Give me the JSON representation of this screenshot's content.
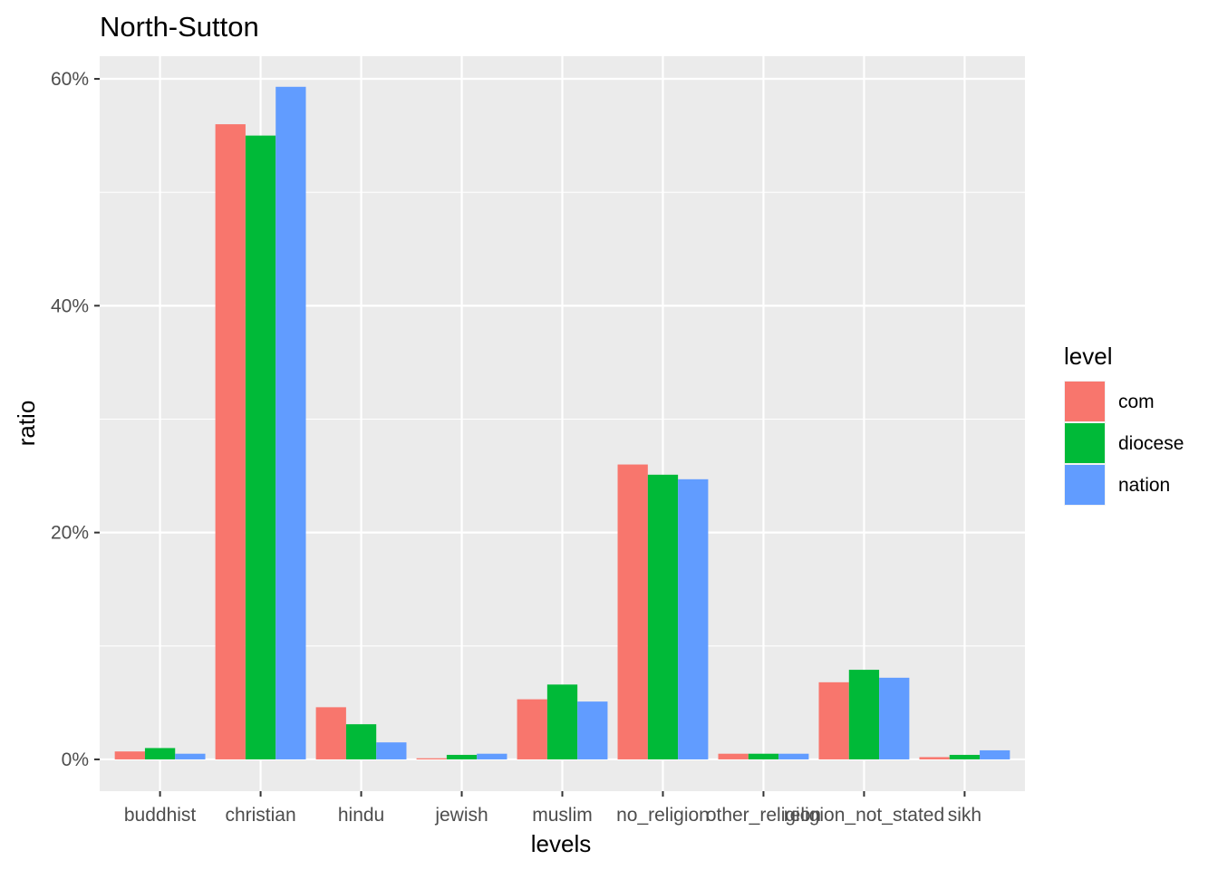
{
  "chart_data": {
    "type": "bar",
    "title": "North-Sutton",
    "xlabel": "levels",
    "ylabel": "ratio",
    "ylim": [
      -0.028,
      0.62
    ],
    "yticks": [
      0,
      0.2,
      0.4,
      0.6
    ],
    "ytick_labels": [
      "0%",
      "20%",
      "40%",
      "60%"
    ],
    "grid": true,
    "legend": {
      "title": "level",
      "position": "right"
    },
    "categories": [
      "buddhist",
      "christian",
      "hindu",
      "jewish",
      "muslim",
      "no_religion",
      "other_religion",
      "religion_not_stated",
      "sikh"
    ],
    "series": [
      {
        "name": "com",
        "color": "#F8766D",
        "values": [
          0.007,
          0.56,
          0.046,
          0.001,
          0.053,
          0.26,
          0.005,
          0.068,
          0.002
        ]
      },
      {
        "name": "diocese",
        "color": "#00BA38",
        "values": [
          0.01,
          0.55,
          0.031,
          0.004,
          0.066,
          0.251,
          0.005,
          0.079,
          0.004
        ]
      },
      {
        "name": "nation",
        "color": "#619CFF",
        "values": [
          0.005,
          0.593,
          0.015,
          0.005,
          0.051,
          0.247,
          0.005,
          0.072,
          0.008
        ]
      }
    ]
  }
}
